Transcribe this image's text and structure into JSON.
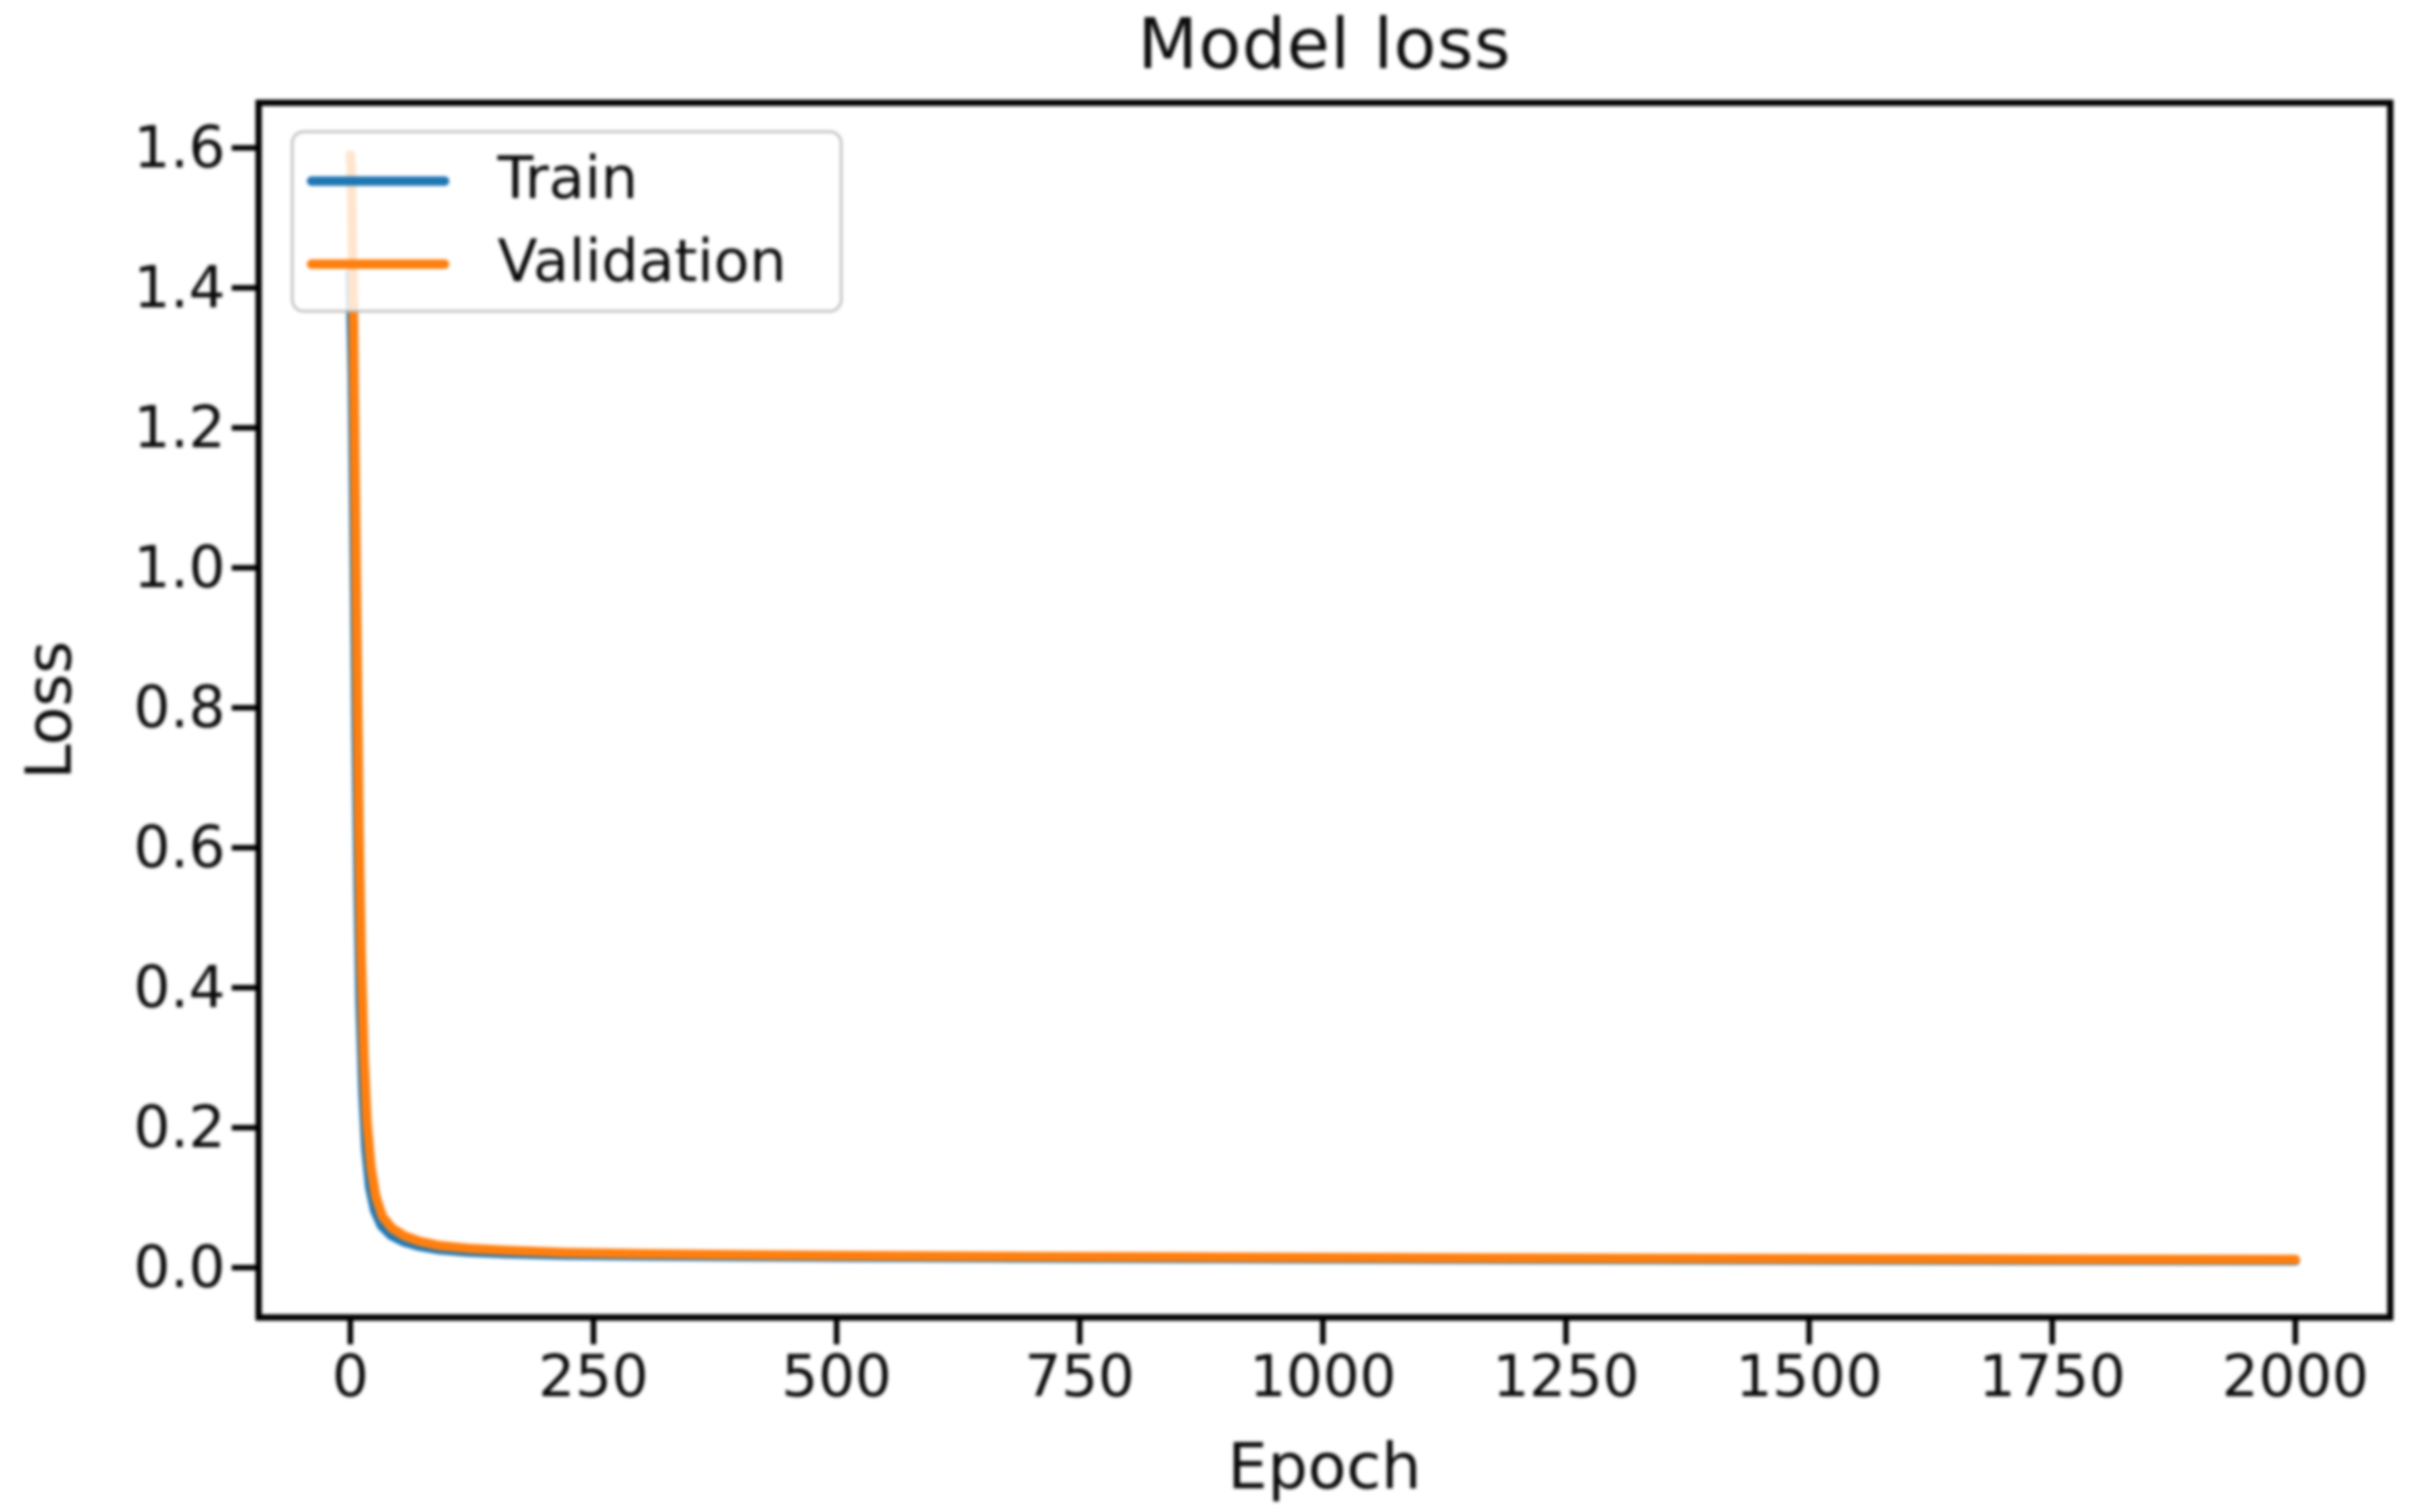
{
  "header": {
    "title": "Model loss"
  },
  "colors": {
    "train_line": "#1f77b4",
    "validation_line": "#ff7f0e",
    "axes_frame": "#000000",
    "tick_text": "#0b0b0b",
    "legend_border": "#b9b9b9",
    "legend_background": "rgba(255,255,255,0.8)"
  },
  "chart_data": {
    "type": "line",
    "title": "Model loss",
    "xlabel": "Epoch",
    "ylabel": "Loss",
    "xlim": [
      -94.3,
      2097.6
    ],
    "ylim": [
      -0.0712,
      1.6644
    ],
    "grid": false,
    "xticks": [
      0,
      250,
      500,
      750,
      1000,
      1250,
      1500,
      1750,
      2000
    ],
    "xtick_labels": [
      "0",
      "250",
      "500",
      "750",
      "1000",
      "1250",
      "1500",
      "1750",
      "2000"
    ],
    "yticks": [
      0.0,
      0.2,
      0.4,
      0.6,
      0.8,
      1.0,
      1.2,
      1.4,
      1.6
    ],
    "ytick_labels": [
      "0.0",
      "0.2",
      "0.4",
      "0.6",
      "0.8",
      "1.0",
      "1.2",
      "1.4",
      "1.6"
    ],
    "legend": {
      "position": "upper left",
      "entries": [
        "Train",
        "Validation"
      ]
    },
    "series": [
      {
        "name": "Train",
        "color": "#1f77b4",
        "x": [
          0,
          2,
          4,
          6,
          8,
          10,
          13,
          16,
          20,
          25,
          32,
          42,
          55,
          70,
          90,
          120,
          160,
          220,
          300,
          400,
          500,
          700,
          1000,
          1300,
          1600,
          1800,
          2000
        ],
        "y": [
          1.42,
          1.28,
          1.02,
          0.76,
          0.54,
          0.38,
          0.25,
          0.17,
          0.115,
          0.082,
          0.06,
          0.046,
          0.037,
          0.031,
          0.026,
          0.0225,
          0.02,
          0.018,
          0.0168,
          0.0158,
          0.015,
          0.0138,
          0.0125,
          0.0115,
          0.0107,
          0.0103,
          0.01
        ]
      },
      {
        "name": "Validation",
        "color": "#ff7f0e",
        "x": [
          0,
          1,
          3,
          5,
          7,
          9,
          11,
          14,
          17,
          21,
          26,
          33,
          43,
          56,
          71,
          91,
          121,
          161,
          221,
          300,
          400,
          500,
          700,
          1000,
          1300,
          1600,
          1800,
          2000
        ],
        "y": [
          1.59,
          1.57,
          1.38,
          1.12,
          0.86,
          0.62,
          0.45,
          0.3,
          0.21,
          0.145,
          0.102,
          0.073,
          0.056,
          0.045,
          0.0375,
          0.0315,
          0.0275,
          0.0245,
          0.0215,
          0.0198,
          0.0183,
          0.0172,
          0.0158,
          0.0143,
          0.0132,
          0.0124,
          0.0119,
          0.0115
        ]
      }
    ]
  }
}
